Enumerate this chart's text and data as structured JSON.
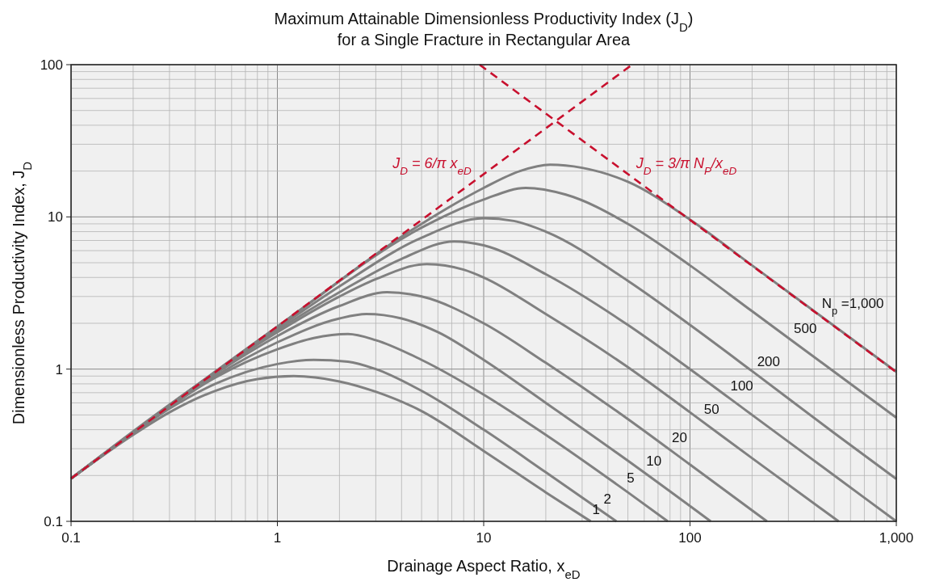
{
  "chart_data": {
    "type": "line",
    "title": "Maximum Attainable Dimensionless Productivity Index (J$_{D}$)\nfor a Single Fracture in Rectangular Area",
    "xlabel": "Drainage Aspect Ratio, x$_{eD}$",
    "ylabel": "Dimensionless Productivity Index, J$_{D}$",
    "log": "xy",
    "grid": true,
    "marker": "none",
    "line_style": "solid",
    "xlim": [
      0.1,
      1000
    ],
    "xticks": [
      0.1,
      1,
      10,
      100,
      {
        "value": 1000,
        "label": "1,000"
      }
    ],
    "ylim": [
      0.1,
      100
    ],
    "yticks": [
      0.1,
      1,
      10,
      100
    ],
    "series": [
      {
        "name": "1",
        "color": "#808080",
        "x": [
          0.1,
          0.2,
          0.3,
          0.5,
          0.8,
          1.2,
          2,
          3,
          5,
          10,
          20,
          33
        ],
        "values": [
          0.191,
          0.37,
          0.52,
          0.72,
          0.86,
          0.9,
          0.83,
          0.71,
          0.53,
          0.29,
          0.155,
          0.1
        ]
      },
      {
        "name": "2",
        "color": "#808080",
        "x": [
          0.1,
          0.2,
          0.3,
          0.5,
          1,
          1.5,
          2.2,
          3,
          5,
          10,
          20,
          44
        ],
        "values": [
          0.191,
          0.38,
          0.55,
          0.8,
          1.08,
          1.15,
          1.12,
          1.0,
          0.72,
          0.4,
          0.21,
          0.1
        ]
      },
      {
        "name": "5",
        "color": "#808080",
        "x": [
          0.1,
          0.2,
          0.5,
          1,
          1.5,
          2.2,
          3,
          5,
          10,
          20,
          50,
          78
        ],
        "values": [
          0.191,
          0.38,
          0.88,
          1.35,
          1.6,
          1.7,
          1.55,
          1.15,
          0.68,
          0.37,
          0.155,
          0.1
        ]
      },
      {
        "name": "10",
        "color": "#808080",
        "x": [
          0.1,
          0.2,
          0.5,
          1,
          2,
          2.7,
          4,
          6,
          10,
          20,
          50,
          126
        ],
        "values": [
          0.191,
          0.38,
          0.9,
          1.5,
          2.15,
          2.3,
          2.15,
          1.75,
          1.15,
          0.6,
          0.25,
          0.1
        ]
      },
      {
        "name": "20",
        "color": "#808080",
        "x": [
          0.1,
          0.2,
          0.5,
          1,
          2,
          3.4,
          5,
          10,
          20,
          50,
          100,
          236
        ],
        "values": [
          0.191,
          0.38,
          0.93,
          1.65,
          2.6,
          3.2,
          3.0,
          2.0,
          1.1,
          0.47,
          0.236,
          0.1
        ]
      },
      {
        "name": "50",
        "color": "#808080",
        "x": [
          0.1,
          0.5,
          1,
          2,
          3,
          5.3,
          8,
          10,
          20,
          50,
          100,
          200,
          525
        ],
        "values": [
          0.191,
          0.95,
          1.75,
          3.0,
          3.9,
          4.9,
          4.5,
          4.0,
          2.3,
          1.03,
          0.52,
          0.26,
          0.1
        ]
      },
      {
        "name": "100",
        "color": "#808080",
        "x": [
          0.1,
          0.5,
          1,
          2,
          4,
          7.2,
          10,
          20,
          50,
          100,
          200,
          500,
          1000
        ],
        "values": [
          0.191,
          0.95,
          1.8,
          3.2,
          5.3,
          6.9,
          6.5,
          4.2,
          1.95,
          1.0,
          0.5,
          0.2,
          0.1
        ]
      },
      {
        "name": "200",
        "color": "#808080",
        "x": [
          0.1,
          1,
          2,
          5,
          10,
          14,
          20,
          50,
          100,
          200,
          500,
          1000
        ],
        "values": [
          0.191,
          1.85,
          3.5,
          7.3,
          9.8,
          9.4,
          8.0,
          3.8,
          1.95,
          0.97,
          0.38,
          0.19
        ]
      },
      {
        "name": "500",
        "color": "#808080",
        "x": [
          0.1,
          1,
          5,
          10,
          16,
          25,
          50,
          100,
          200,
          500,
          1000
        ],
        "values": [
          0.191,
          1.9,
          8.5,
          13.0,
          15.5,
          14.0,
          9.0,
          4.8,
          2.4,
          0.96,
          0.48
        ]
      },
      {
        "name": "N$_{p}$ =1,000",
        "color": "#808080",
        "x": [
          0.1,
          1,
          5,
          10,
          15,
          21,
          30,
          50,
          100,
          200,
          500,
          1000
        ],
        "values": [
          0.191,
          1.9,
          9.0,
          15.5,
          20,
          22,
          21,
          17,
          9.6,
          4.8,
          1.92,
          0.96
        ]
      },
      {
        "color": "#c8102e",
        "line_style": "dashed",
        "x": [
          0.1,
          52.4
        ],
        "values": [
          0.191,
          100
        ]
      },
      {
        "color": "#c8102e",
        "line_style": "dashed",
        "x": [
          9.55,
          1000
        ],
        "values": [
          100,
          0.955
        ]
      }
    ],
    "annotations": [
      "J$_{D}$ = 6/π x$_{eD}$",
      "J$_{D}$ = 3/π N$_{P}$/x$_{eD}$"
    ]
  }
}
